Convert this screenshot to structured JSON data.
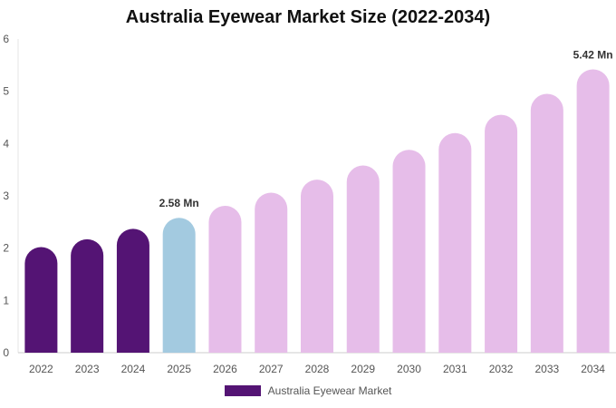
{
  "chart_data": {
    "type": "bar",
    "title": "Australia Eyewear Market Size (2022-2034)",
    "categories": [
      "2022",
      "2023",
      "2024",
      "2025",
      "2026",
      "2027",
      "2028",
      "2029",
      "2030",
      "2031",
      "2032",
      "2033",
      "2034"
    ],
    "series": [
      {
        "name": "Australia Eyewear Market",
        "values": [
          2.02,
          2.17,
          2.37,
          2.58,
          2.81,
          3.06,
          3.31,
          3.58,
          3.88,
          4.2,
          4.55,
          4.95,
          5.42
        ]
      }
    ],
    "bar_colors": [
      "#541474",
      "#541474",
      "#541474",
      "#a3cae0",
      "#e6bde9",
      "#e6bde9",
      "#e6bde9",
      "#e6bde9",
      "#e6bde9",
      "#e6bde9",
      "#e6bde9",
      "#e6bde9",
      "#e6bde9"
    ],
    "data_labels": [
      {
        "category": "2025",
        "text": "2.58 Mn"
      },
      {
        "category": "2034",
        "text": "5.42 Mn"
      }
    ],
    "yticks": [
      "0",
      "1",
      "2",
      "3",
      "4",
      "5",
      "6"
    ],
    "ylim": [
      0,
      6
    ],
    "xlabel": "",
    "ylabel": "",
    "grid": false,
    "legend_position": "bottom",
    "legend_color": "#541474"
  }
}
